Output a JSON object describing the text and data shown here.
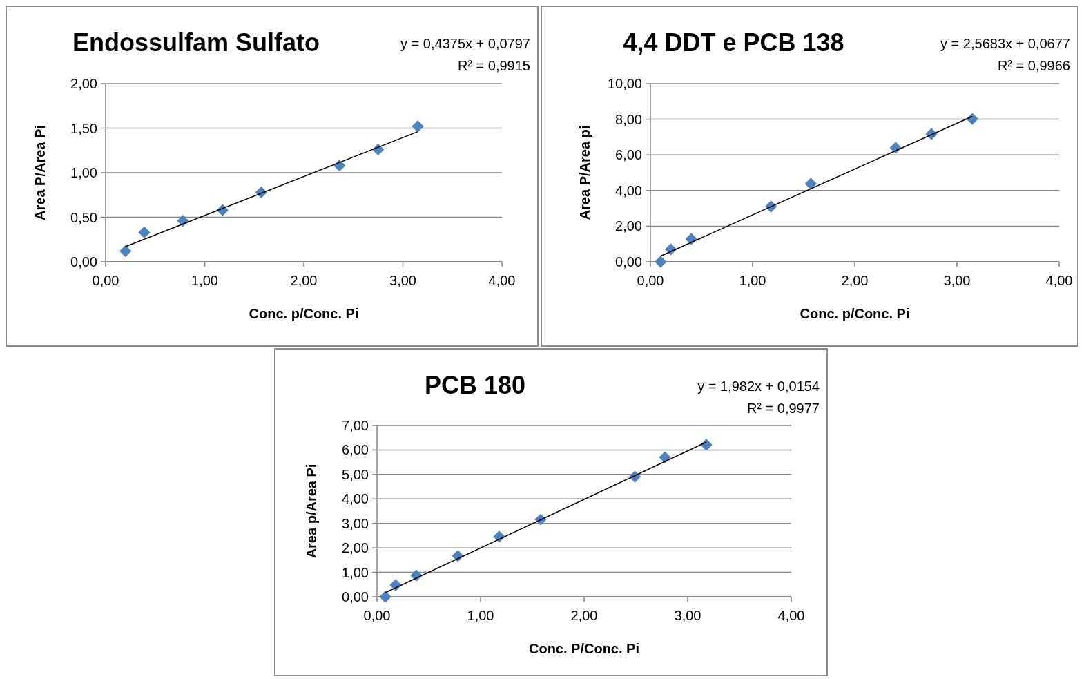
{
  "chart_data": [
    {
      "type": "scatter",
      "title": "Endossulfam Sulfato",
      "xlabel": "Conc. p/Conc. Pi",
      "ylabel": "Area P/Area Pi",
      "annotations": [
        "y = 0,4375x + 0,0797",
        "R² = 0,9915"
      ],
      "marker": "diamond",
      "grid": "y",
      "xlim": [
        0,
        4
      ],
      "ylim": [
        0,
        2
      ],
      "xticks": [
        {
          "value": 0,
          "label": "0,00"
        },
        {
          "value": 1,
          "label": "1,00"
        },
        {
          "value": 2,
          "label": "2,00"
        },
        {
          "value": 3,
          "label": "3,00"
        },
        {
          "value": 4,
          "label": "4,00"
        }
      ],
      "yticks": [
        {
          "value": 0,
          "label": "0,00"
        },
        {
          "value": 0.5,
          "label": "0,50"
        },
        {
          "value": 1,
          "label": "1,00"
        },
        {
          "value": 1.5,
          "label": "1,50"
        },
        {
          "value": 2,
          "label": "2,00"
        }
      ],
      "series": [
        {
          "color": "#4f81bd",
          "x": [
            0.2,
            0.39,
            0.78,
            1.18,
            1.57,
            2.36,
            2.75,
            3.15
          ],
          "values": [
            0.12,
            0.33,
            0.46,
            0.58,
            0.78,
            1.08,
            1.26,
            1.52
          ]
        },
        {
          "type": "line",
          "marker": "none",
          "color": "#000000",
          "x": [
            0.2,
            3.15
          ],
          "values": [
            0.17,
            1.46
          ]
        }
      ]
    },
    {
      "type": "scatter",
      "title": "4,4 DDT e PCB 138",
      "xlabel": "Conc. p/Conc. Pi",
      "ylabel": "Area P/Area pi",
      "annotations": [
        "y = 2,5683x + 0,0677",
        "R² = 0,9966"
      ],
      "marker": "diamond",
      "grid": "y",
      "xlim": [
        0,
        4
      ],
      "ylim": [
        0,
        10
      ],
      "xticks": [
        {
          "value": 0,
          "label": "0,00"
        },
        {
          "value": 1,
          "label": "1,00"
        },
        {
          "value": 2,
          "label": "2,00"
        },
        {
          "value": 3,
          "label": "3,00"
        },
        {
          "value": 4,
          "label": "4,00"
        }
      ],
      "yticks": [
        {
          "value": 0,
          "label": "0,00"
        },
        {
          "value": 2,
          "label": "2,00"
        },
        {
          "value": 4,
          "label": "4,00"
        },
        {
          "value": 6,
          "label": "6,00"
        },
        {
          "value": 8,
          "label": "8,00"
        },
        {
          "value": 10,
          "label": "10,00"
        }
      ],
      "series": [
        {
          "color": "#4f81bd",
          "x": [
            0.1,
            0.2,
            0.4,
            1.18,
            1.57,
            2.4,
            2.75,
            3.15
          ],
          "values": [
            0,
            0.7,
            1.28,
            3.1,
            4.38,
            6.4,
            7.17,
            8.02
          ]
        },
        {
          "type": "line",
          "marker": "none",
          "color": "#000000",
          "x": [
            0.1,
            3.15
          ],
          "values": [
            0.32,
            8.16
          ]
        }
      ]
    },
    {
      "type": "scatter",
      "title": "PCB 180",
      "xlabel": "Conc. P/Conc. Pi",
      "ylabel": "Area p/Area Pi",
      "annotations": [
        "y = 1,982x + 0,0154",
        "R² = 0,9977"
      ],
      "marker": "diamond",
      "grid": "y",
      "xlim": [
        0,
        4
      ],
      "ylim": [
        0,
        7
      ],
      "xticks": [
        {
          "value": 0,
          "label": "0,00"
        },
        {
          "value": 1,
          "label": "1,00"
        },
        {
          "value": 2,
          "label": "2,00"
        },
        {
          "value": 3,
          "label": "3,00"
        },
        {
          "value": 4,
          "label": "4,00"
        }
      ],
      "yticks": [
        {
          "value": 0,
          "label": "0,00"
        },
        {
          "value": 1,
          "label": "1,00"
        },
        {
          "value": 2,
          "label": "2,00"
        },
        {
          "value": 3,
          "label": "3,00"
        },
        {
          "value": 4,
          "label": "4,00"
        },
        {
          "value": 5,
          "label": "5,00"
        },
        {
          "value": 6,
          "label": "6,00"
        },
        {
          "value": 7,
          "label": "7,00"
        }
      ],
      "series": [
        {
          "color": "#4f81bd",
          "x": [
            0.08,
            0.18,
            0.38,
            0.78,
            1.18,
            1.58,
            2.49,
            2.78,
            3.18
          ],
          "values": [
            0,
            0.48,
            0.87,
            1.67,
            2.46,
            3.16,
            4.91,
            5.7,
            6.21
          ]
        },
        {
          "type": "line",
          "marker": "none",
          "color": "#000000",
          "x": [
            0.08,
            3.18
          ],
          "values": [
            0.17,
            6.32
          ]
        }
      ]
    }
  ]
}
